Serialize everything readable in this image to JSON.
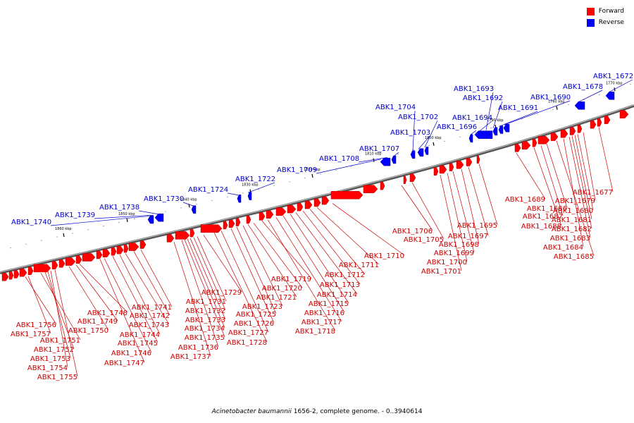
{
  "legend": [
    {
      "label": "Forward",
      "color": "#ff0000"
    },
    {
      "label": "Reverse",
      "color": "#0000ff"
    }
  ],
  "caption": {
    "organism": "Acinetobacter baumannii",
    "rest": " 1656-2, complete genome. - 0..3940614"
  },
  "ticks": [
    "1860 kbp",
    "1850 kbp",
    "1840 kbp",
    "1830 kbp",
    "1820 kbp",
    "1810 kbp",
    "1800 kbp",
    "1790 kbp",
    "1780 kbp",
    "1770 kbp"
  ],
  "forward_genes_bottom": [
    "ABK1_1756",
    "ABK1_1757",
    "ABK1_1751",
    "ABK1_1752",
    "ABK1_1753",
    "ABK1_1754",
    "ABK1_1755",
    "ABK1_1750",
    "ABK1_1749",
    "ABK1_1748",
    "ABK1_1747",
    "ABK1_1746",
    "ABK1_1745",
    "ABK1_1744",
    "ABK1_1743",
    "ABK1_1742",
    "ABK1_1741",
    "ABK1_1737",
    "ABK1_1736",
    "ABK1_1735",
    "ABK1_1734",
    "ABK1_1733",
    "ABK1_1732",
    "ABK1_1731",
    "ABK1_1729",
    "ABK1_1728",
    "ABK1_1727",
    "ABK1_1726",
    "ABK1_1725",
    "ABK1_1723",
    "ABK1_1721",
    "ABK1_1720",
    "ABK1_1719",
    "ABK1_1718",
    "ABK1_1717",
    "ABK1_1716",
    "ABK1_1715",
    "ABK1_1714",
    "ABK1_1713",
    "ABK1_1712",
    "ABK1_1711",
    "ABK1_1710",
    "ABK1_1706",
    "ABK1_1705",
    "ABK1_1701",
    "ABK1_1700",
    "ABK1_1699",
    "ABK1_1698",
    "ABK1_1697",
    "ABK1_1695",
    "ABK1_1689",
    "ABK1_1688",
    "ABK1_1687",
    "ABK1_1686",
    "ABK1_1685",
    "ABK1_1684",
    "ABK1_1683",
    "ABK1_1682",
    "ABK1_1681",
    "ABK1_1680",
    "ABK1_1679",
    "ABK1_1677"
  ],
  "reverse_genes_top": [
    "ABK1_1740",
    "ABK1_1739",
    "ABK1_1738",
    "ABK1_1730",
    "ABK1_1724",
    "ABK1_1722",
    "ABK1_1709",
    "ABK1_1708",
    "ABK1_1707",
    "ABK1_1704",
    "ABK1_1703",
    "ABK1_1702",
    "ABK1_1696",
    "ABK1_1694",
    "ABK1_1693",
    "ABK1_1692",
    "ABK1_1691",
    "ABK1_1690",
    "ABK1_1678",
    "ABK1_1672"
  ]
}
